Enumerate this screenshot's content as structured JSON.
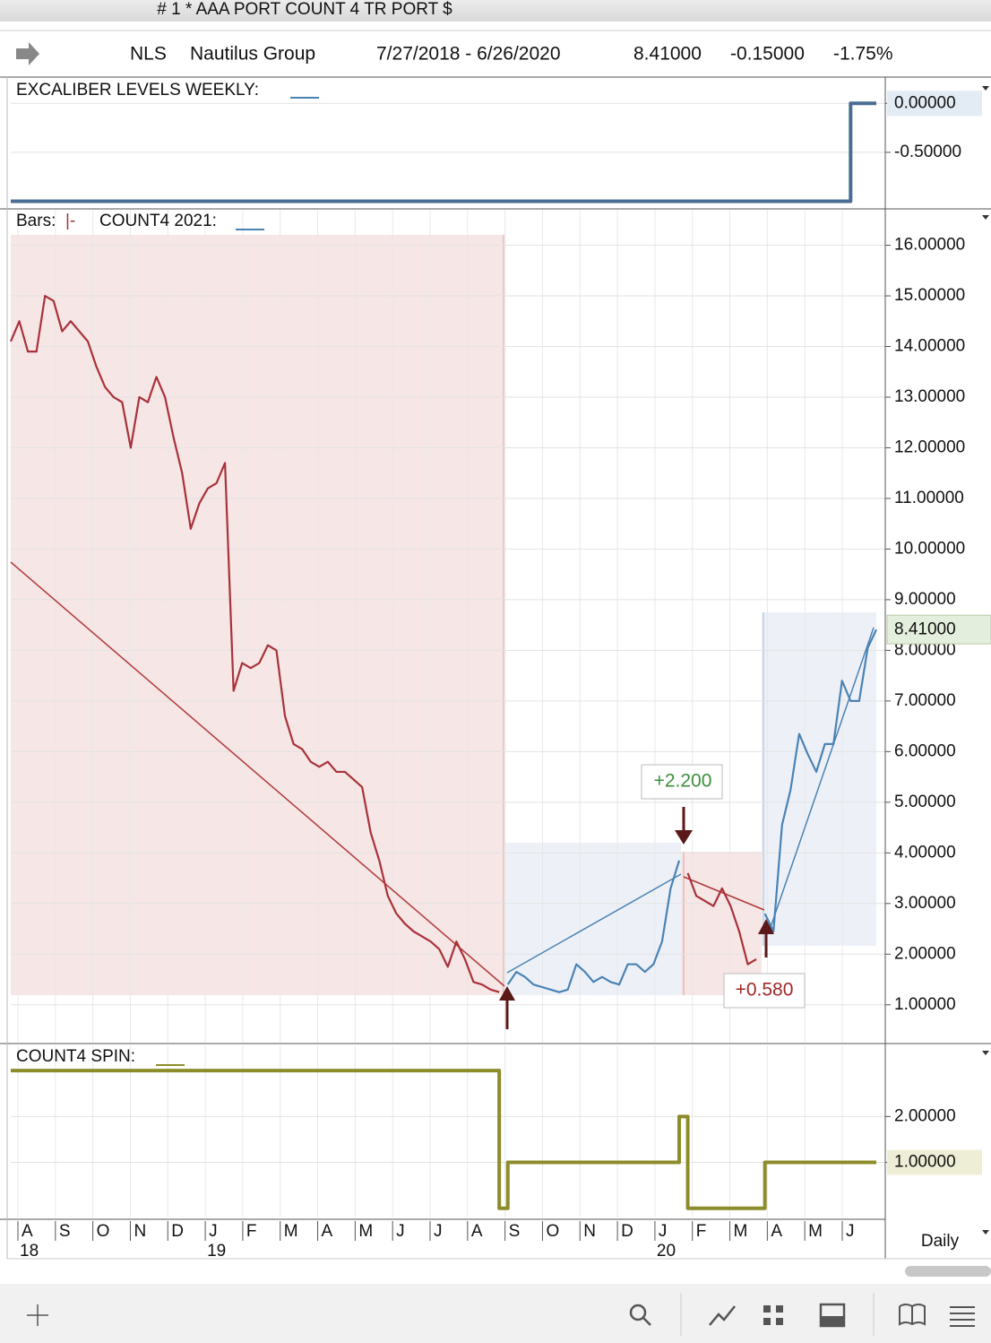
{
  "window": {
    "title": "# 1 * AAA PORT COUNT 4 TR PORT $"
  },
  "header": {
    "symbol": "NLS",
    "name": "Nautilus Group",
    "range": "7/27/2018 - 6/26/2020",
    "last": "8.41000",
    "change": "-0.15000",
    "change_pct": "-1.75%"
  },
  "x_axis": {
    "months": [
      "A",
      "S",
      "O",
      "N",
      "D",
      "J",
      "F",
      "M",
      "A",
      "M",
      "J",
      "J",
      "A",
      "S",
      "O",
      "N",
      "D",
      "J",
      "F",
      "M",
      "A",
      "M",
      "J"
    ],
    "years": [
      "18",
      null,
      null,
      null,
      null,
      "19",
      null,
      null,
      null,
      null,
      null,
      null,
      null,
      null,
      null,
      null,
      null,
      "20",
      null,
      null,
      null,
      null,
      null
    ],
    "period": "Daily"
  },
  "chart_data": [
    {
      "type": "line",
      "step": true,
      "title": "EXCALIBER LEVELS WEEKLY:",
      "grid": true,
      "series": [
        {
          "color": "#4a6d94",
          "values": [
            -1,
            -1,
            -1,
            -1,
            -1,
            -1,
            -1,
            -1,
            -1,
            -1,
            -1,
            -1,
            -1,
            -1,
            -1,
            -1,
            -1,
            -1,
            -1,
            -1,
            -1,
            -1,
            -1,
            -1,
            -1,
            -1,
            -1,
            -1,
            -1,
            -1,
            -1,
            -1,
            -1,
            -1,
            -1,
            -1,
            -1,
            -1,
            -1,
            -1,
            -1,
            -1,
            -1,
            -1,
            -1,
            -1,
            -1,
            -1,
            -1,
            -1,
            -1,
            -1,
            -1,
            -1,
            -1,
            -1,
            -1,
            -1,
            -1,
            -1,
            -1,
            -1,
            -1,
            -1,
            -1,
            -1,
            -1,
            -1,
            -1,
            -1,
            -1,
            -1,
            -1,
            -1,
            -1,
            -1,
            -1,
            -1,
            -1,
            -1,
            -1,
            -1,
            -1,
            -1,
            -1,
            -1,
            -1,
            -1,
            -1,
            -1,
            -1,
            -1,
            -1,
            -1,
            -1,
            -1,
            -1,
            -1,
            0,
            0,
            0,
            0
          ]
        }
      ],
      "ylim": [
        -1.05,
        0.25
      ],
      "yticks": [
        {
          "value": 0,
          "label": "0.00000"
        },
        {
          "value": -0.5,
          "label": "-0.50000"
        }
      ]
    },
    {
      "type": "line",
      "step": false,
      "bars_label": "Bars:",
      "bars_style": "|-",
      "title": "COUNT4 2021:",
      "grid": true,
      "series": [
        {
          "color": "#a8323a",
          "values": [
            14.1,
            14.5,
            13.9,
            13.9,
            15.0,
            14.9,
            14.3,
            14.5,
            14.3,
            14.1,
            13.6,
            13.2,
            13.0,
            12.9,
            12.0,
            13.0,
            12.9,
            13.4,
            13.0,
            12.2,
            11.5,
            10.4,
            10.9,
            11.2,
            11.3,
            11.7,
            7.2,
            7.75,
            7.65,
            7.75,
            8.1,
            8.0,
            6.7,
            6.15,
            6.05,
            5.8,
            5.7,
            5.8,
            5.6,
            5.6,
            5.45,
            5.3,
            4.4,
            3.85,
            3.15,
            2.8,
            2.6,
            2.45,
            2.35,
            2.25,
            2.1,
            1.75,
            2.25,
            1.9,
            1.45,
            1.4,
            1.3,
            1.25,
            null,
            null,
            null,
            null,
            null,
            null,
            null,
            null,
            null,
            null,
            null,
            null,
            null,
            null,
            null,
            null,
            null,
            null,
            null,
            null,
            null,
            3.6,
            3.15,
            3.05,
            2.95,
            3.3,
            2.95,
            2.45,
            1.8,
            1.9,
            null,
            null,
            null,
            null,
            null,
            null,
            null,
            null,
            null,
            null,
            null,
            null,
            null,
            null
          ]
        },
        {
          "color": "#4a82b4",
          "values": [
            null,
            null,
            null,
            null,
            null,
            null,
            null,
            null,
            null,
            null,
            null,
            null,
            null,
            null,
            null,
            null,
            null,
            null,
            null,
            null,
            null,
            null,
            null,
            null,
            null,
            null,
            null,
            null,
            null,
            null,
            null,
            null,
            null,
            null,
            null,
            null,
            null,
            null,
            null,
            null,
            null,
            null,
            null,
            null,
            null,
            null,
            null,
            null,
            null,
            null,
            null,
            null,
            null,
            null,
            null,
            null,
            null,
            null,
            1.4,
            1.65,
            1.55,
            1.4,
            1.35,
            1.3,
            1.25,
            1.3,
            1.8,
            1.65,
            1.45,
            1.55,
            1.45,
            1.4,
            1.8,
            1.8,
            1.65,
            1.8,
            2.25,
            3.3,
            3.85,
            null,
            null,
            null,
            null,
            null,
            null,
            null,
            null,
            null,
            2.8,
            2.45,
            4.55,
            5.25,
            6.35,
            5.95,
            5.6,
            6.15,
            6.15,
            7.4,
            7.0,
            7.0,
            8.05,
            8.41
          ]
        }
      ],
      "annotations": [
        {
          "text": "+2.200",
          "color": "#3b8f3b"
        },
        {
          "text": "+0.580",
          "color": "#a02828"
        }
      ],
      "ylim": [
        0.27,
        16.7
      ],
      "yticks": [
        {
          "value": 16,
          "label": "16.00000"
        },
        {
          "value": 15,
          "label": "15.00000"
        },
        {
          "value": 14,
          "label": "14.00000"
        },
        {
          "value": 13,
          "label": "13.00000"
        },
        {
          "value": 12,
          "label": "12.00000"
        },
        {
          "value": 11,
          "label": "11.00000"
        },
        {
          "value": 10,
          "label": "10.00000"
        },
        {
          "value": 9,
          "label": "9.00000"
        },
        {
          "value": 8,
          "label": "8.00000"
        },
        {
          "value": 7,
          "label": "7.00000"
        },
        {
          "value": 6,
          "label": "6.00000"
        },
        {
          "value": 5,
          "label": "5.00000"
        },
        {
          "value": 4,
          "label": "4.00000"
        },
        {
          "value": 3,
          "label": "3.00000"
        },
        {
          "value": 2,
          "label": "2.00000"
        },
        {
          "value": 1,
          "label": "1.00000"
        }
      ]
    },
    {
      "type": "line",
      "step": true,
      "title": "COUNT4 SPIN:",
      "grid": true,
      "series": [
        {
          "color": "#8c8c2a",
          "values": [
            3,
            3,
            3,
            3,
            3,
            3,
            3,
            3,
            3,
            3,
            3,
            3,
            3,
            3,
            3,
            3,
            3,
            3,
            3,
            3,
            3,
            3,
            3,
            3,
            3,
            3,
            3,
            3,
            3,
            3,
            3,
            3,
            3,
            3,
            3,
            3,
            3,
            3,
            3,
            3,
            3,
            3,
            3,
            3,
            3,
            3,
            3,
            3,
            3,
            3,
            3,
            3,
            3,
            3,
            3,
            3,
            3,
            0,
            1,
            1,
            1,
            1,
            1,
            1,
            1,
            1,
            1,
            1,
            1,
            1,
            1,
            1,
            1,
            1,
            1,
            1,
            1,
            1,
            2,
            0,
            0,
            0,
            0,
            0,
            0,
            0,
            0,
            0,
            1,
            1,
            1,
            1,
            1,
            1,
            1,
            1,
            1,
            1,
            1,
            1,
            1,
            1
          ]
        }
      ],
      "ylim": [
        -0.2,
        3.55
      ],
      "yticks": [
        {
          "value": 2,
          "label": "2.00000"
        },
        {
          "value": 1,
          "label": "1.00000"
        }
      ]
    }
  ]
}
